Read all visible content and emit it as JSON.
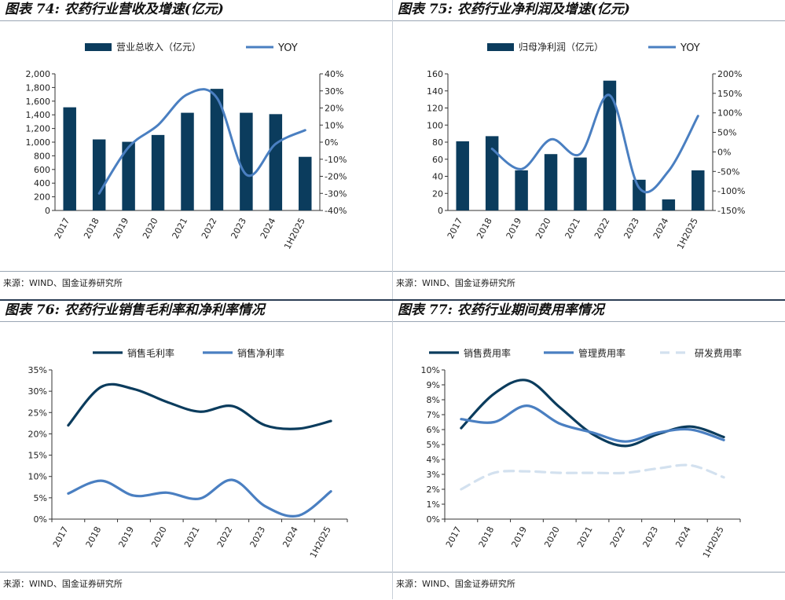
{
  "panels": [
    {
      "title": "图表 74: 农药行业营收及增速(亿元)",
      "source": "来源：WIND、国金证券研究所",
      "chart_data": {
        "type": "bar",
        "categories": [
          "2017",
          "2018",
          "2019",
          "2020",
          "2021",
          "2022",
          "2023",
          "2024",
          "1H2025"
        ],
        "series": [
          {
            "name": "营业总收入（亿元）",
            "kind": "bar",
            "axis": "left",
            "values": [
              1510,
              1040,
              1005,
              1105,
              1430,
              1780,
              1430,
              1410,
              785
            ]
          },
          {
            "name": "YOY",
            "kind": "line",
            "axis": "right",
            "values": [
              null,
              -30,
              -3,
              10,
              28,
              26,
              -19,
              -1,
              7
            ]
          }
        ],
        "ylim_left": [
          0,
          2000
        ],
        "yticks_left": [
          "0",
          "200",
          "400",
          "600",
          "800",
          "1,000",
          "1,200",
          "1,400",
          "1,600",
          "1,800",
          "2,000"
        ],
        "ylim_right": [
          -40,
          40
        ],
        "yticks_right": [
          "-40%",
          "-30%",
          "-20%",
          "-10%",
          "0%",
          "10%",
          "20%",
          "30%",
          "40%"
        ],
        "legend": "top"
      }
    },
    {
      "title": "图表 75: 农药行业净利润及增速(亿元)",
      "source": "来源：WIND、国金证券研究所",
      "chart_data": {
        "type": "bar",
        "categories": [
          "2017",
          "2018",
          "2019",
          "2020",
          "2021",
          "2022",
          "2023",
          "2024",
          "1H2025"
        ],
        "series": [
          {
            "name": "归母净利润（亿元）",
            "kind": "bar",
            "axis": "left",
            "values": [
              81,
              87,
              47,
              66,
              62,
              152,
              36,
              13,
              47
            ]
          },
          {
            "name": "YOY",
            "kind": "line",
            "axis": "right",
            "values": [
              null,
              8,
              -44,
              32,
              -5,
              145,
              -92,
              -49,
              92
            ]
          }
        ],
        "ylim_left": [
          0,
          160
        ],
        "yticks_left": [
          "0",
          "20",
          "40",
          "60",
          "80",
          "100",
          "120",
          "140",
          "160"
        ],
        "ylim_right": [
          -150,
          200
        ],
        "yticks_right": [
          "-150%",
          "-100%",
          "-50%",
          "0%",
          "50%",
          "100%",
          "150%",
          "200%"
        ],
        "legend": "top"
      }
    },
    {
      "title": "图表 76: 农药行业销售毛利率和净利率情况",
      "source": "来源：WIND、国金证券研究所",
      "chart_data": {
        "type": "line",
        "categories": [
          "2017",
          "2018",
          "2019",
          "2020",
          "2021",
          "2022",
          "2023",
          "2024",
          "1H2025"
        ],
        "series": [
          {
            "name": "销售毛利率",
            "values": [
              22.0,
              31.0,
              30.5,
              27.5,
              25.2,
              26.5,
              22.0,
              21.2,
              23.0
            ]
          },
          {
            "name": "销售净利率",
            "values": [
              6.0,
              9.0,
              5.5,
              6.2,
              4.8,
              9.2,
              3.0,
              0.8,
              6.5
            ]
          }
        ],
        "ylim": [
          0,
          35
        ],
        "yticks": [
          "0%",
          "5%",
          "10%",
          "15%",
          "20%",
          "25%",
          "30%",
          "35%"
        ],
        "legend": "top"
      }
    },
    {
      "title": "图表 77: 农药行业期间费用率情况",
      "source": "来源：WIND、国金证券研究所",
      "chart_data": {
        "type": "line",
        "categories": [
          "2017",
          "2018",
          "2019",
          "2020",
          "2021",
          "2022",
          "2023",
          "2024",
          "1H2025"
        ],
        "series": [
          {
            "name": "销售费用率",
            "values": [
              6.1,
              8.4,
              9.3,
              7.5,
              5.7,
              4.9,
              5.7,
              6.2,
              5.5
            ]
          },
          {
            "name": "管理费用率",
            "values": [
              6.7,
              6.5,
              7.6,
              6.4,
              5.8,
              5.2,
              5.8,
              6.0,
              5.3
            ]
          },
          {
            "name": "研发费用率",
            "values": [
              2.0,
              3.1,
              3.2,
              3.1,
              3.1,
              3.1,
              3.4,
              3.6,
              2.8
            ]
          }
        ],
        "ylim": [
          0,
          10
        ],
        "yticks": [
          "0%",
          "1%",
          "2%",
          "3%",
          "4%",
          "5%",
          "6%",
          "7%",
          "8%",
          "9%",
          "10%"
        ],
        "legend": "top"
      }
    }
  ],
  "colors": {
    "dark": "#0b3c5d",
    "mid": "#4a7fc1",
    "light": "#d3e1ef",
    "axis": "#333333"
  }
}
